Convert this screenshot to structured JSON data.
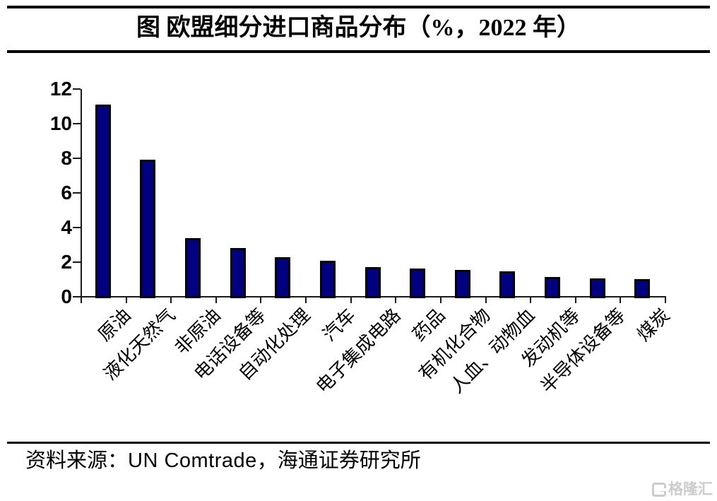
{
  "title": "图 欧盟细分进口商品分布（%，2022 年）",
  "source": {
    "label": "资料来源：",
    "agency": "UN Comtrade",
    "suffix": "，海通证券研究所"
  },
  "watermark": {
    "icon": "gelonghui-logo",
    "text": "格隆汇"
  },
  "chart_data": {
    "type": "bar",
    "title": "图 欧盟细分进口商品分布（%，2022 年）",
    "categories": [
      "原油",
      "液化天然气",
      "非原油",
      "电话设备等",
      "自动化处理",
      "汽车",
      "电子集成电路",
      "药品",
      "有机化合物",
      "人血、动物血",
      "发动机等",
      "半导体设备等",
      "煤炭"
    ],
    "values": [
      11.1,
      7.9,
      3.4,
      2.8,
      2.3,
      2.1,
      1.7,
      1.65,
      1.55,
      1.45,
      1.15,
      1.05,
      1.0
    ],
    "xlabel": "",
    "ylabel": "",
    "ylim": [
      0,
      12
    ],
    "yticks": [
      0,
      2,
      4,
      6,
      8,
      10,
      12
    ],
    "grid": false,
    "legend_position": "none",
    "bar_color": "#000080",
    "bar_border_color": "#000000",
    "axis_color": "#1a1a1a"
  }
}
